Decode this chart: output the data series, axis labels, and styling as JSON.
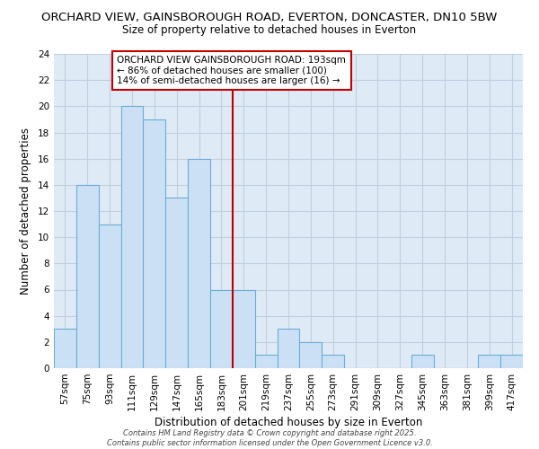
{
  "title_line1": "ORCHARD VIEW, GAINSBOROUGH ROAD, EVERTON, DONCASTER, DN10 5BW",
  "title_line2": "Size of property relative to detached houses in Everton",
  "xlabel": "Distribution of detached houses by size in Everton",
  "ylabel": "Number of detached properties",
  "categories": [
    "57sqm",
    "75sqm",
    "93sqm",
    "111sqm",
    "129sqm",
    "147sqm",
    "165sqm",
    "183sqm",
    "201sqm",
    "219sqm",
    "237sqm",
    "255sqm",
    "273sqm",
    "291sqm",
    "309sqm",
    "327sqm",
    "345sqm",
    "363sqm",
    "381sqm",
    "399sqm",
    "417sqm"
  ],
  "values": [
    3,
    14,
    11,
    20,
    19,
    13,
    16,
    6,
    6,
    1,
    3,
    2,
    1,
    0,
    0,
    0,
    1,
    0,
    0,
    1,
    1
  ],
  "bar_color": "#cce0f5",
  "bar_edge_color": "#6aaed6",
  "vline_color": "#c00000",
  "annotation_text": "ORCHARD VIEW GAINSBOROUGH ROAD: 193sqm\n← 86% of detached houses are smaller (100)\n14% of semi-detached houses are larger (16) →",
  "annotation_box_edge": "#c00000",
  "ylim": [
    0,
    24
  ],
  "yticks": [
    0,
    2,
    4,
    6,
    8,
    10,
    12,
    14,
    16,
    18,
    20,
    22,
    24
  ],
  "grid_color": "#c0d0e0",
  "background_color": "#deeaf5",
  "footer_text": "Contains HM Land Registry data © Crown copyright and database right 2025.\nContains public sector information licensed under the Open Government Licence v3.0.",
  "title_fontsize": 9.5,
  "subtitle_fontsize": 8.5,
  "axis_label_fontsize": 8.5,
  "tick_fontsize": 7.5,
  "annotation_fontsize": 7.5,
  "footer_fontsize": 6.0
}
